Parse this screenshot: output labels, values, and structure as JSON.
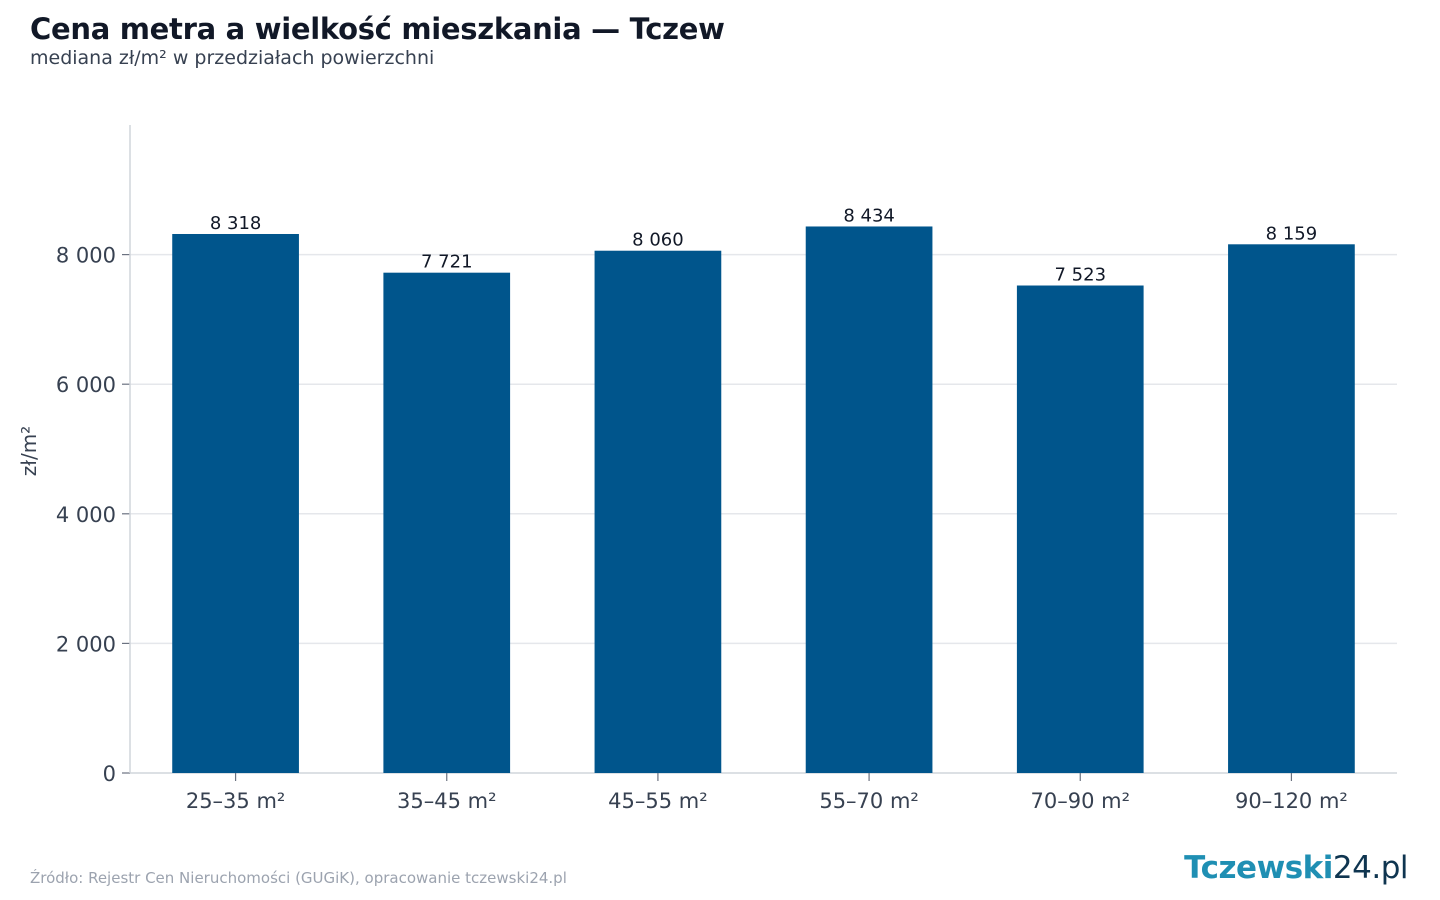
{
  "header": {
    "title": "Cena metra a wielkość mieszkania — Tczew",
    "subtitle": "mediana zł/m² w przedziałach powierzchni"
  },
  "footer": {
    "source": "Źródło: Rejestr Cen Nieruchomości (GUGiK), opracowanie tczewski24.pl",
    "brand_main": "Tczewski",
    "brand_suffix": "24.pl"
  },
  "colors": {
    "bar": "#00558c",
    "grid": "#e5e7eb",
    "axis": "#d1d5db",
    "tick_text": "#374151",
    "label_text": "#111827"
  },
  "chart_data": {
    "type": "bar",
    "categories": [
      "25–35 m²",
      "35–45 m²",
      "45–55 m²",
      "55–70 m²",
      "70–90 m²",
      "90–120 m²"
    ],
    "values": [
      8318,
      7721,
      8060,
      8434,
      7523,
      8159
    ],
    "value_labels": [
      "8 318",
      "7 721",
      "8 060",
      "8 434",
      "7 523",
      "8 159"
    ],
    "ylabel": "zł/m²",
    "xlabel": "",
    "ylim": [
      0,
      10000
    ],
    "yticks": [
      0,
      2000,
      4000,
      6000,
      8000
    ],
    "ytick_labels": [
      "0",
      "2 000",
      "4 000",
      "6 000",
      "8 000"
    ],
    "grid": true,
    "legend": "none"
  }
}
